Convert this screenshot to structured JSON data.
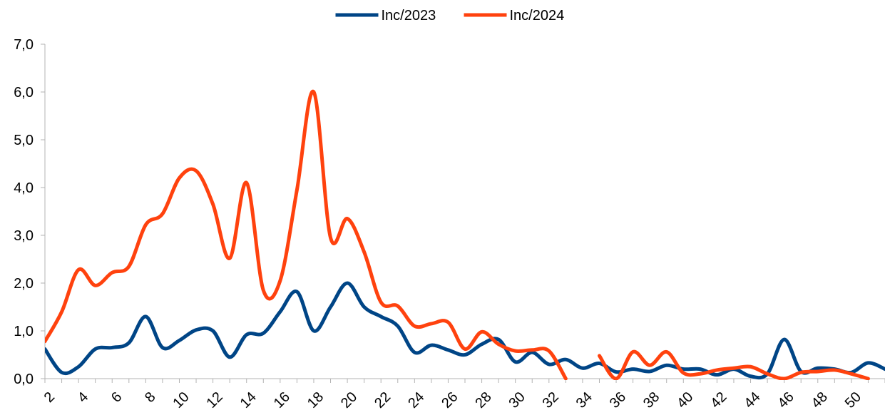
{
  "chart_data": {
    "type": "line",
    "title": "",
    "xlabel": "",
    "ylabel": "",
    "legend_position": "top",
    "grid": false,
    "smooth": true,
    "ylim": [
      0,
      7
    ],
    "yticks": [
      "0,0",
      "1,0",
      "2,0",
      "3,0",
      "4,0",
      "5,0",
      "6,0",
      "7,0"
    ],
    "xlim": [
      2,
      52
    ],
    "xticks": [
      "2",
      "4",
      "6",
      "8",
      "10",
      "12",
      "14",
      "16",
      "18",
      "20",
      "22",
      "24",
      "26",
      "28",
      "30",
      "32",
      "34",
      "36",
      "38",
      "40",
      "42",
      "44",
      "46",
      "48",
      "50"
    ],
    "x": [
      2,
      3,
      4,
      5,
      6,
      7,
      8,
      9,
      10,
      11,
      12,
      13,
      14,
      15,
      16,
      17,
      18,
      19,
      20,
      21,
      22,
      23,
      24,
      25,
      26,
      27,
      28,
      29,
      30,
      31,
      32,
      33,
      34,
      35,
      36,
      37,
      38,
      39,
      40,
      41,
      42,
      43,
      44,
      45,
      46,
      47,
      48,
      49,
      50,
      51,
      52
    ],
    "series": [
      {
        "name": "Inc/2023",
        "color": "#004586",
        "values": [
          0.62,
          0.13,
          0.25,
          0.62,
          0.65,
          0.75,
          1.3,
          0.65,
          0.8,
          1.02,
          1.0,
          0.45,
          0.92,
          0.95,
          1.4,
          1.82,
          1.0,
          1.5,
          2.0,
          1.5,
          1.3,
          1.1,
          0.55,
          0.7,
          0.6,
          0.5,
          0.72,
          0.82,
          0.35,
          0.55,
          0.3,
          0.4,
          0.22,
          0.32,
          0.14,
          0.2,
          0.15,
          0.28,
          0.2,
          0.2,
          0.08,
          0.2,
          0.05,
          0.1,
          0.82,
          0.15,
          0.22,
          0.2,
          0.13,
          0.33,
          0.2
        ]
      },
      {
        "name": "Inc/2024",
        "color": "#ff420e",
        "values": [
          0.78,
          1.4,
          2.28,
          1.95,
          2.22,
          2.35,
          3.22,
          3.45,
          4.2,
          4.35,
          3.65,
          2.52,
          4.1,
          1.85,
          2.05,
          3.95,
          6.0,
          2.95,
          3.35,
          2.65,
          1.6,
          1.52,
          1.1,
          1.15,
          1.18,
          0.62,
          0.98,
          0.72,
          0.58,
          0.6,
          0.58,
          0.0,
          null,
          0.48,
          0.0,
          0.56,
          0.28,
          0.56,
          0.12,
          0.1,
          0.18,
          0.22,
          0.25,
          0.1,
          0.0,
          0.13,
          0.15,
          0.18,
          0.1,
          0.0,
          null
        ]
      }
    ]
  }
}
